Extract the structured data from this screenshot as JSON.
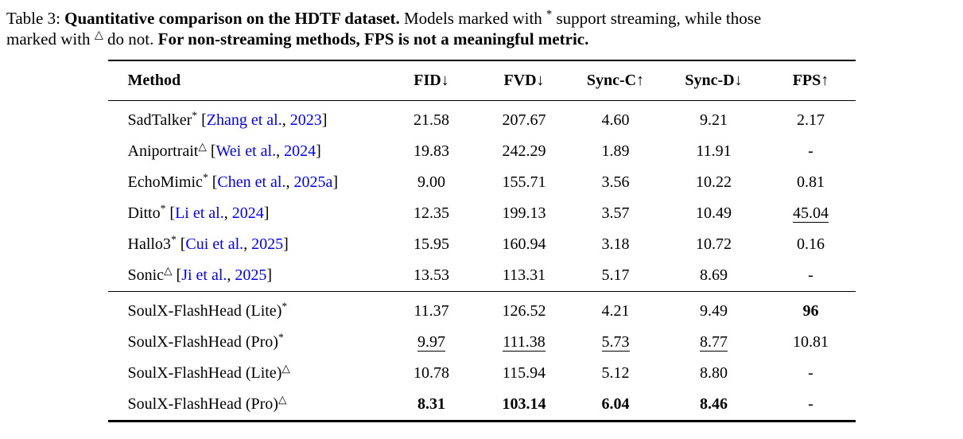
{
  "colors": {
    "link": "#0000FF",
    "text": "#000000",
    "rule": "#000000"
  },
  "caption": {
    "lines": [
      [
        {
          "text": "Table 3: "
        },
        {
          "text": "Quantitative comparison on the HDTF dataset.",
          "bold": true
        },
        {
          "text": " Models marked with "
        },
        {
          "text": "*",
          "sup": true
        },
        {
          "text": " support streaming, while those"
        }
      ],
      [
        {
          "text": "marked with "
        },
        {
          "text": "△",
          "sup": true
        },
        {
          "text": " do not. "
        },
        {
          "text": "For non-streaming methods, FPS is not a meaningful metric.",
          "bold": true
        }
      ]
    ]
  },
  "table": {
    "columns": [
      "Method",
      "FID↓",
      "FVD↓",
      "Sync-C↑",
      "Sync-D↓",
      "FPS↑"
    ],
    "sections": [
      {
        "rows": [
          {
            "method": {
              "name": "SadTalker",
              "marker": "*",
              "cite": {
                "authors": "Zhang et al.",
                "year": "2023"
              }
            },
            "values": [
              {
                "t": "21.58"
              },
              {
                "t": "207.67"
              },
              {
                "t": "4.60"
              },
              {
                "t": "9.21"
              },
              {
                "t": "2.17"
              }
            ]
          },
          {
            "method": {
              "name": "Aniportrait",
              "marker": "△",
              "cite": {
                "authors": "Wei et al.",
                "year": "2024"
              }
            },
            "values": [
              {
                "t": "19.83"
              },
              {
                "t": "242.29"
              },
              {
                "t": "1.89"
              },
              {
                "t": "11.91"
              },
              {
                "t": "-"
              }
            ]
          },
          {
            "method": {
              "name": "EchoMimic",
              "marker": "*",
              "cite": {
                "authors": "Chen et al.",
                "year": "2025a"
              }
            },
            "values": [
              {
                "t": "9.00"
              },
              {
                "t": "155.71"
              },
              {
                "t": "3.56"
              },
              {
                "t": "10.22"
              },
              {
                "t": "0.81"
              }
            ]
          },
          {
            "method": {
              "name": "Ditto",
              "marker": "*",
              "cite": {
                "authors": "Li et al.",
                "year": "2024"
              }
            },
            "values": [
              {
                "t": "12.35"
              },
              {
                "t": "199.13"
              },
              {
                "t": "3.57"
              },
              {
                "t": "10.49"
              },
              {
                "t": "45.04",
                "u": true
              }
            ]
          },
          {
            "method": {
              "name": "Hallo3",
              "marker": "*",
              "cite": {
                "authors": "Cui et al.",
                "year": "2025"
              }
            },
            "values": [
              {
                "t": "15.95"
              },
              {
                "t": "160.94"
              },
              {
                "t": "3.18"
              },
              {
                "t": "10.72"
              },
              {
                "t": "0.16"
              }
            ]
          },
          {
            "method": {
              "name": "Sonic",
              "marker": "△",
              "cite": {
                "authors": "Ji et al.",
                "year": "2025"
              }
            },
            "values": [
              {
                "t": "13.53"
              },
              {
                "t": "113.31"
              },
              {
                "t": "5.17"
              },
              {
                "t": "8.69"
              },
              {
                "t": "-"
              }
            ]
          }
        ]
      },
      {
        "rows": [
          {
            "method": {
              "name": "SoulX-FlashHead (Lite)",
              "marker": "*"
            },
            "values": [
              {
                "t": "11.37"
              },
              {
                "t": "126.52"
              },
              {
                "t": "4.21"
              },
              {
                "t": "9.49"
              },
              {
                "t": "96",
                "b": true
              }
            ]
          },
          {
            "method": {
              "name": "SoulX-FlashHead (Pro)",
              "marker": "*"
            },
            "values": [
              {
                "t": "9.97",
                "u": true
              },
              {
                "t": "111.38",
                "u": true
              },
              {
                "t": "5.73",
                "u": true
              },
              {
                "t": "8.77",
                "u": true
              },
              {
                "t": "10.81"
              }
            ]
          },
          {
            "method": {
              "name": "SoulX-FlashHead (Lite)",
              "marker": "△"
            },
            "values": [
              {
                "t": "10.78"
              },
              {
                "t": "115.94"
              },
              {
                "t": "5.12"
              },
              {
                "t": "8.80"
              },
              {
                "t": "-"
              }
            ]
          },
          {
            "method": {
              "name": "SoulX-FlashHead (Pro)",
              "marker": "△"
            },
            "values": [
              {
                "t": "8.31",
                "b": true
              },
              {
                "t": "103.14",
                "b": true
              },
              {
                "t": "6.04",
                "b": true
              },
              {
                "t": "8.46",
                "b": true
              },
              {
                "t": "-"
              }
            ]
          }
        ]
      }
    ]
  }
}
